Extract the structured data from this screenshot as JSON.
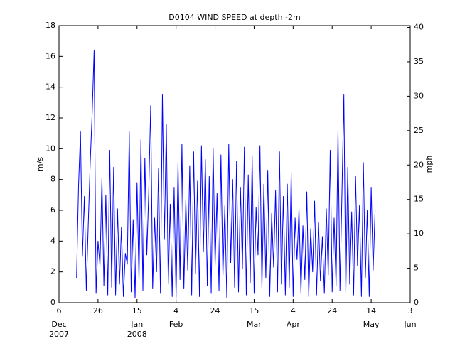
{
  "chart_data": {
    "type": "line",
    "title": "D0104 WIND SPEED at depth -2m",
    "y_label": "m/s",
    "y2_label": "mph",
    "xlim": [
      "2007-12-06",
      "2008-06-03"
    ],
    "xticks": [
      {
        "value": "2007-12-06",
        "label": "6"
      },
      {
        "value": "2007-12-26",
        "label": "26"
      },
      {
        "value": "2008-01-15",
        "label": "15"
      },
      {
        "value": "2008-02-04",
        "label": "4"
      },
      {
        "value": "2008-02-24",
        "label": "24"
      },
      {
        "value": "2008-03-15",
        "label": "15"
      },
      {
        "value": "2008-04-04",
        "label": "4"
      },
      {
        "value": "2008-04-24",
        "label": "24"
      },
      {
        "value": "2008-05-14",
        "label": "14"
      },
      {
        "value": "2008-06-03",
        "label": "3"
      }
    ],
    "xtick_months": [
      {
        "value": "2007-12-06",
        "label": "Dec"
      },
      {
        "value": "2008-01-15",
        "label": "Jan"
      },
      {
        "value": "2008-02-04",
        "label": "Feb"
      },
      {
        "value": "2008-03-15",
        "label": "Mar"
      },
      {
        "value": "2008-04-04",
        "label": "Apr"
      },
      {
        "value": "2008-05-14",
        "label": "May"
      },
      {
        "value": "2008-06-03",
        "label": "Jun"
      }
    ],
    "xtick_years": [
      {
        "value": "2007-12-06",
        "label": "2007"
      },
      {
        "value": "2008-01-15",
        "label": "2008"
      }
    ],
    "ylim": [
      0,
      18
    ],
    "yticks": [
      0,
      2,
      4,
      6,
      8,
      10,
      12,
      14,
      16,
      18
    ],
    "y2lim": [
      0,
      40.26
    ],
    "y2ticks": [
      0,
      5,
      10,
      15,
      20,
      25,
      30,
      35,
      40
    ],
    "x": [
      "2007-12-15",
      "2007-12-16",
      "2007-12-17",
      "2007-12-18",
      "2007-12-19",
      "2007-12-20",
      "2007-12-21",
      "2007-12-22",
      "2007-12-23",
      "2007-12-24",
      "2007-12-25",
      "2007-12-26",
      "2007-12-27",
      "2007-12-28",
      "2007-12-29",
      "2007-12-30",
      "2007-12-31",
      "2008-01-01",
      "2008-01-02",
      "2008-01-03",
      "2008-01-04",
      "2008-01-05",
      "2008-01-06",
      "2008-01-07",
      "2008-01-08",
      "2008-01-09",
      "2008-01-10",
      "2008-01-11",
      "2008-01-12",
      "2008-01-13",
      "2008-01-14",
      "2008-01-15",
      "2008-01-16",
      "2008-01-17",
      "2008-01-18",
      "2008-01-19",
      "2008-01-20",
      "2008-01-21",
      "2008-01-22",
      "2008-01-23",
      "2008-01-24",
      "2008-01-25",
      "2008-01-26",
      "2008-01-27",
      "2008-01-28",
      "2008-01-29",
      "2008-01-30",
      "2008-01-31",
      "2008-02-01",
      "2008-02-02",
      "2008-02-03",
      "2008-02-04",
      "2008-02-05",
      "2008-02-06",
      "2008-02-07",
      "2008-02-08",
      "2008-02-09",
      "2008-02-10",
      "2008-02-11",
      "2008-02-12",
      "2008-02-13",
      "2008-02-14",
      "2008-02-15",
      "2008-02-16",
      "2008-02-17",
      "2008-02-18",
      "2008-02-19",
      "2008-02-20",
      "2008-02-21",
      "2008-02-22",
      "2008-02-23",
      "2008-02-24",
      "2008-02-25",
      "2008-02-26",
      "2008-02-27",
      "2008-02-28",
      "2008-02-29",
      "2008-03-01",
      "2008-03-02",
      "2008-03-03",
      "2008-03-04",
      "2008-03-05",
      "2008-03-06",
      "2008-03-07",
      "2008-03-08",
      "2008-03-09",
      "2008-03-10",
      "2008-03-11",
      "2008-03-12",
      "2008-03-13",
      "2008-03-14",
      "2008-03-15",
      "2008-03-16",
      "2008-03-17",
      "2008-03-18",
      "2008-03-19",
      "2008-03-20",
      "2008-03-21",
      "2008-03-22",
      "2008-03-23",
      "2008-03-24",
      "2008-03-25",
      "2008-03-26",
      "2008-03-27",
      "2008-03-28",
      "2008-03-29",
      "2008-03-30",
      "2008-03-31",
      "2008-04-01",
      "2008-04-02",
      "2008-04-03",
      "2008-04-04",
      "2008-04-05",
      "2008-04-06",
      "2008-04-07",
      "2008-04-08",
      "2008-04-09",
      "2008-04-10",
      "2008-04-11",
      "2008-04-12",
      "2008-04-13",
      "2008-04-14",
      "2008-04-15",
      "2008-04-16",
      "2008-04-17",
      "2008-04-18",
      "2008-04-19",
      "2008-04-20",
      "2008-04-21",
      "2008-04-22",
      "2008-04-23",
      "2008-04-24",
      "2008-04-25",
      "2008-04-26",
      "2008-04-27",
      "2008-04-28",
      "2008-04-29",
      "2008-04-30",
      "2008-05-01",
      "2008-05-02",
      "2008-05-03",
      "2008-05-04",
      "2008-05-05",
      "2008-05-06",
      "2008-05-07",
      "2008-05-08",
      "2008-05-09",
      "2008-05-10",
      "2008-05-11",
      "2008-05-12",
      "2008-05-13",
      "2008-05-14",
      "2008-05-15",
      "2008-05-16"
    ],
    "series": [
      {
        "color": "#0000ff",
        "values": [
          1.6,
          7.5,
          11.1,
          3.0,
          6.9,
          0.8,
          5.1,
          9.1,
          12.3,
          16.4,
          0.6,
          4.0,
          2.4,
          8.1,
          1.1,
          7.0,
          0.5,
          9.9,
          1.0,
          8.8,
          0.5,
          6.1,
          1.2,
          4.9,
          0.4,
          3.2,
          2.5,
          11.1,
          0.7,
          5.4,
          0.3,
          7.8,
          1.4,
          10.6,
          0.8,
          9.4,
          3.1,
          7.2,
          12.8,
          0.9,
          5.5,
          2.0,
          8.7,
          0.6,
          13.5,
          4.1,
          11.6,
          1.2,
          6.4,
          0.4,
          7.5,
          0.3,
          9.1,
          1.5,
          10.3,
          0.9,
          6.7,
          2.1,
          8.9,
          0.5,
          9.8,
          1.9,
          7.9,
          0.4,
          10.2,
          3.3,
          9.3,
          1.1,
          8.2,
          0.6,
          10.0,
          2.4,
          7.1,
          0.8,
          9.6,
          1.7,
          6.3,
          0.3,
          10.3,
          2.6,
          8.0,
          1.0,
          9.2,
          0.7,
          7.5,
          2.2,
          10.1,
          0.5,
          8.3,
          1.3,
          9.5,
          0.6,
          6.2,
          3.1,
          10.2,
          0.9,
          7.7,
          1.6,
          8.6,
          0.4,
          5.8,
          2.3,
          7.3,
          0.7,
          9.8,
          1.2,
          6.9,
          0.5,
          7.7,
          1.0,
          8.4,
          0.4,
          5.5,
          2.8,
          6.1,
          0.6,
          5.0,
          1.5,
          7.2,
          0.4,
          4.8,
          2.0,
          6.6,
          0.5,
          5.2,
          1.4,
          4.3,
          0.6,
          6.1,
          1.8,
          9.9,
          0.7,
          5.5,
          1.1,
          11.2,
          0.8,
          7.0,
          13.5,
          0.6,
          8.8,
          1.2,
          5.9,
          0.5,
          8.2,
          2.4,
          6.3,
          0.4,
          9.1,
          1.6,
          6.0,
          0.4,
          7.5,
          2.1,
          6.0
        ]
      }
    ]
  }
}
